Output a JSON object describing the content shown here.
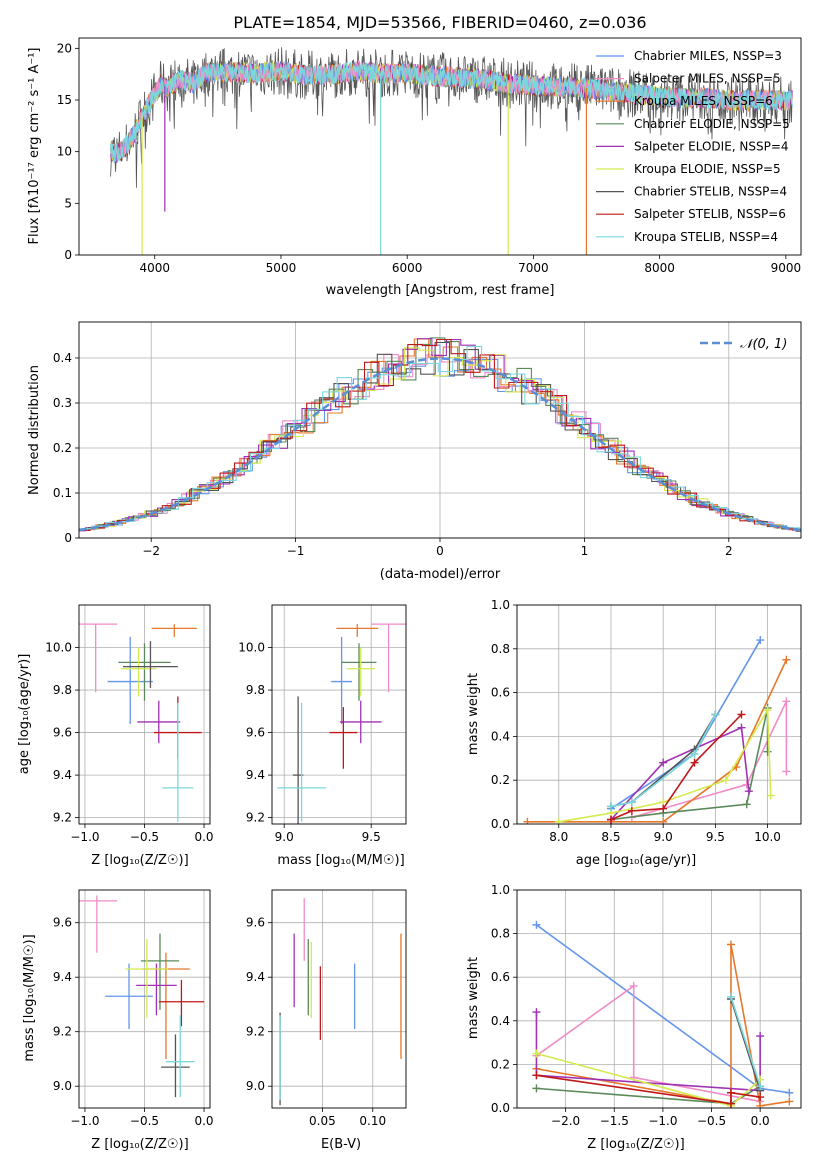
{
  "colors": [
    "#6495ed",
    "#f08cc8",
    "#e5782a",
    "#5a8a5a",
    "#a030b4",
    "#d4ea4e",
    "#555555",
    "#c01818",
    "#7ad8dc"
  ],
  "chart_data": [
    {
      "type": "line",
      "title": "PLATE=1854, MJD=53566, FIBERID=0460, z=0.036",
      "xlabel": "wavelength [Angstrom, rest frame]",
      "ylabel": "Flux [fλ10⁻¹⁷ erg cm⁻² s⁻¹ A⁻¹]",
      "xlim": [
        3400,
        9120
      ],
      "ylim": [
        0,
        21
      ],
      "xticks": [
        4000,
        5000,
        6000,
        7000,
        8000,
        9000
      ],
      "yticks": [
        0,
        5,
        10,
        15,
        20
      ],
      "grid": false,
      "legend_position": "right",
      "series": [
        {
          "name": "Chabrier MILES, N_SSP=3"
        },
        {
          "name": "Salpeter MILES, N_SSP=5"
        },
        {
          "name": "Kroupa MILES, N_SSP=6"
        },
        {
          "name": "Chabrier ELODIE, N_SSP=5"
        },
        {
          "name": "Salpeter ELODIE, N_SSP=4"
        },
        {
          "name": "Kroupa ELODIE, N_SSP=5"
        },
        {
          "name": "Chabrier STELIB, N_SSP=4"
        },
        {
          "name": "Salpeter STELIB, N_SSP=6"
        },
        {
          "name": "Kroupa STELIB, N_SSP=4"
        }
      ],
      "spectrum_envelope": {
        "x": [
          3650,
          3700,
          3750,
          3800,
          3850,
          3900,
          3950,
          4000,
          4050,
          4100,
          4200,
          4300,
          4400,
          4500,
          4600,
          4800,
          5000,
          5200,
          5400,
          5600,
          5800,
          6000,
          6200,
          6400,
          6600,
          6800,
          7000,
          7200,
          7400,
          7600,
          7800,
          8000,
          8200,
          8400,
          8600,
          8800,
          9000,
          9050
        ],
        "y": [
          10.0,
          9.8,
          10.2,
          11.0,
          12.0,
          13.5,
          14.5,
          15.5,
          16.5,
          16.2,
          17.0,
          16.6,
          17.6,
          17.8,
          17.7,
          17.6,
          17.8,
          17.4,
          17.5,
          17.8,
          17.6,
          17.6,
          17.3,
          17.2,
          17.0,
          16.6,
          16.4,
          16.3,
          16.2,
          15.9,
          15.6,
          15.3,
          15.2,
          15.2,
          14.9,
          15.0,
          15.0,
          15.0
        ]
      },
      "deep_drops": [
        {
          "x": 3900,
          "y": 0
        },
        {
          "x": 4080,
          "y": 4.2
        },
        {
          "x": 5790,
          "y": 0
        },
        {
          "x": 6800,
          "y": 0
        },
        {
          "x": 7420,
          "y": 0
        }
      ]
    },
    {
      "type": "histogram",
      "xlabel": "(data-model)/error",
      "ylabel": "Normed distribution",
      "xlim": [
        -2.5,
        2.5
      ],
      "ylim": [
        0,
        0.48
      ],
      "xticks": [
        -2,
        -1,
        0,
        1,
        2
      ],
      "yticks": [
        0.0,
        0.1,
        0.2,
        0.3,
        0.4
      ],
      "grid": true,
      "legend": "𝒩(0, 1)",
      "legend_position": "top-right"
    },
    {
      "type": "errorbar",
      "xlabel": "Z [log₁₀(Z/Z☉)]",
      "ylabel": "age  [log₁₀(age/yr)]",
      "xlim": [
        -1.05,
        0.05
      ],
      "ylim": [
        9.17,
        10.2
      ],
      "xticks": [
        -1.0,
        -0.5,
        0.0
      ],
      "yticks": [
        9.2,
        9.4,
        9.6,
        9.8,
        10.0
      ],
      "grid": true,
      "points": [
        {
          "x": -0.62,
          "xerr": 0.19,
          "y": 9.84,
          "yerr": [
            0.2,
            0.21
          ]
        },
        {
          "x": -0.91,
          "xerr": 0.18,
          "y": 10.11,
          "yerr": [
            0.32,
            0
          ]
        },
        {
          "x": -0.25,
          "xerr": 0.19,
          "y": 10.09,
          "yerr": [
            0.04,
            0.02
          ]
        },
        {
          "x": -0.5,
          "xerr": 0.22,
          "y": 9.93,
          "yerr": [
            0.18,
            0.09
          ]
        },
        {
          "x": -0.38,
          "xerr": 0.18,
          "y": 9.65,
          "yerr": [
            0.1,
            0.1
          ]
        },
        {
          "x": -0.55,
          "xerr": 0.15,
          "y": 9.9,
          "yerr": [
            0.13,
            0.1
          ]
        },
        {
          "x": -0.45,
          "xerr": 0.23,
          "y": 9.91,
          "yerr": [
            0.1,
            0.12
          ]
        },
        {
          "x": -0.22,
          "xerr": 0.2,
          "y": 9.6,
          "yerr": [
            0.12,
            0.17
          ]
        },
        {
          "x": -0.22,
          "xerr": 0.13,
          "y": 9.34,
          "yerr": [
            0.16,
            0.4
          ]
        }
      ]
    },
    {
      "type": "errorbar",
      "xlabel": "mass [log₁₀(M/M☉)]",
      "xlim": [
        8.93,
        9.7
      ],
      "ylim": [
        9.17,
        10.2
      ],
      "xticks": [
        9.0,
        9.5
      ],
      "yticks": [
        9.2,
        9.4,
        9.6,
        9.8,
        10.0
      ],
      "grid": true,
      "points": [
        {
          "x": 9.33,
          "xerr": 0.06,
          "y": 9.84,
          "yerr": [
            0.2,
            0.21
          ]
        },
        {
          "x": 9.6,
          "xerr": 0.1,
          "y": 10.11,
          "yerr": [
            0.32,
            0
          ]
        },
        {
          "x": 9.42,
          "xerr": 0.12,
          "y": 10.09,
          "yerr": [
            0.04,
            0.02
          ]
        },
        {
          "x": 9.43,
          "xerr": 0.1,
          "y": 9.93,
          "yerr": [
            0.18,
            0.09
          ]
        },
        {
          "x": 9.44,
          "xerr": 0.12,
          "y": 9.65,
          "yerr": [
            0.1,
            0.1
          ]
        },
        {
          "x": 9.44,
          "xerr": 0.08,
          "y": 9.9,
          "yerr": [
            0.13,
            0.1
          ]
        },
        {
          "x": 9.08,
          "xerr": 0.03,
          "y": 9.4,
          "yerr": [
            0.4,
            0.37
          ]
        },
        {
          "x": 9.34,
          "xerr": 0.08,
          "y": 9.6,
          "yerr": [
            0.17,
            0.12
          ]
        },
        {
          "x": 9.1,
          "xerr": 0.14,
          "y": 9.34,
          "yerr": [
            0.16,
            0.4
          ]
        }
      ]
    },
    {
      "type": "line",
      "xlabel": "age  [log₁₀(age/yr)]",
      "ylabel": "mass weight",
      "xlim": [
        7.6,
        10.32
      ],
      "ylim": [
        0.0,
        1.0
      ],
      "xticks": [
        8.0,
        8.5,
        9.0,
        9.5,
        10.0
      ],
      "yticks": [
        0.0,
        0.2,
        0.4,
        0.6,
        0.8,
        1.0
      ],
      "grid": true,
      "series": [
        {
          "x": [
            8.5,
            9.3,
            9.93
          ],
          "y": [
            0.07,
            0.32,
            0.84
          ]
        },
        {
          "x": [
            8.7,
            9.8,
            10.18,
            10.18
          ],
          "y": [
            0.03,
            0.18,
            0.56,
            0.24
          ]
        },
        {
          "x": [
            7.7,
            9.0,
            9.7,
            10.18
          ],
          "y": [
            0.01,
            0.01,
            0.26,
            0.75
          ]
        },
        {
          "x": [
            8.5,
            9.0,
            9.8,
            10.0,
            10.0
          ],
          "y": [
            0.02,
            0.05,
            0.09,
            0.53,
            0.33
          ]
        },
        {
          "x": [
            8.5,
            9.0,
            9.75,
            9.82
          ],
          "y": [
            0.02,
            0.28,
            0.44,
            0.15
          ]
        },
        {
          "x": [
            8.0,
            8.5,
            9.0,
            9.6,
            10.0,
            10.03
          ],
          "y": [
            0.01,
            0.05,
            0.1,
            0.2,
            0.52,
            0.13
          ]
        },
        {
          "x": [
            8.5,
            8.7,
            9.3,
            9.5
          ],
          "y": [
            0.08,
            0.1,
            0.34,
            0.5
          ]
        },
        {
          "x": [
            8.5,
            8.7,
            9.0,
            9.3,
            9.75
          ],
          "y": [
            0.02,
            0.06,
            0.07,
            0.28,
            0.5
          ]
        },
        {
          "x": [
            8.5,
            8.7,
            9.3,
            9.5
          ],
          "y": [
            0.08,
            0.1,
            0.32,
            0.5
          ]
        }
      ]
    },
    {
      "type": "errorbar",
      "xlabel": "Z [log₁₀(Z/Z☉)]",
      "ylabel": "mass [log₁₀(M/M☉)]",
      "xlim": [
        -1.05,
        0.05
      ],
      "ylim": [
        8.92,
        9.72
      ],
      "xticks": [
        -1.0,
        -0.5,
        0.0
      ],
      "yticks": [
        9.0,
        9.2,
        9.4,
        9.6
      ],
      "grid": true,
      "points": [
        {
          "x": -0.63,
          "xerr": 0.2,
          "y": 9.33,
          "yerr": [
            0.12,
            0.12
          ]
        },
        {
          "x": -0.9,
          "xerr": 0.17,
          "y": 9.68,
          "yerr": [
            0.19,
            0.02
          ]
        },
        {
          "x": -0.32,
          "xerr": 0.2,
          "y": 9.43,
          "yerr": [
            0.33,
            0.06
          ]
        },
        {
          "x": -0.37,
          "xerr": 0.16,
          "y": 9.46,
          "yerr": [
            0.18,
            0.1
          ]
        },
        {
          "x": -0.4,
          "xerr": 0.17,
          "y": 9.37,
          "yerr": [
            0.11,
            0.08
          ]
        },
        {
          "x": -0.48,
          "xerr": 0.18,
          "y": 9.43,
          "yerr": [
            0.18,
            0.11
          ]
        },
        {
          "x": -0.24,
          "xerr": 0.12,
          "y": 9.07,
          "yerr": [
            0.11,
            0.12
          ]
        },
        {
          "x": -0.19,
          "xerr": 0.19,
          "y": 9.31,
          "yerr": [
            0.09,
            0.08
          ]
        },
        {
          "x": -0.2,
          "xerr": 0.12,
          "y": 9.09,
          "yerr": [
            0.13,
            0.17
          ]
        }
      ]
    },
    {
      "type": "errorbar",
      "xlabel": "E(B-V)",
      "xlim": [
        0.0,
        0.133
      ],
      "ylim": [
        8.92,
        9.72
      ],
      "xticks": [
        0.05,
        0.1
      ],
      "yticks": [
        9.0,
        9.2,
        9.4,
        9.6
      ],
      "grid": true,
      "points": [
        {
          "x": 0.082,
          "y": 9.33,
          "yerr": [
            0.12,
            0.12
          ]
        },
        {
          "x": 0.032,
          "y": 9.6,
          "yerr": [
            0.14,
            0.09
          ]
        },
        {
          "x": 0.128,
          "y": 9.33,
          "yerr": [
            0.23,
            0.23
          ]
        },
        {
          "x": 0.036,
          "y": 9.44,
          "yerr": [
            0.18,
            0.1
          ]
        },
        {
          "x": 0.022,
          "y": 9.46,
          "yerr": [
            0.17,
            0.1
          ]
        },
        {
          "x": 0.039,
          "y": 9.43,
          "yerr": [
            0.18,
            0.1
          ]
        },
        {
          "x": 0.008,
          "y": 9.1,
          "yerr": [
            0.17,
            0.17
          ]
        },
        {
          "x": 0.048,
          "y": 9.31,
          "yerr": [
            0.14,
            0.13
          ]
        },
        {
          "x": 0.008,
          "y": 9.09,
          "yerr": [
            0.14,
            0.17
          ]
        }
      ]
    },
    {
      "type": "line",
      "xlabel": "Z [log₁₀(Z/Z☉)]",
      "ylabel": "mass weight",
      "xlim": [
        -2.5,
        0.42
      ],
      "ylim": [
        0.0,
        1.0
      ],
      "xticks": [
        -2.0,
        -1.5,
        -1.0,
        -0.5,
        0.0
      ],
      "yticks": [
        0.0,
        0.2,
        0.4,
        0.6,
        0.8,
        1.0
      ],
      "grid": true,
      "series": [
        {
          "x": [
            -2.3,
            0.0,
            0.3
          ],
          "y": [
            0.84,
            0.09,
            0.07
          ]
        },
        {
          "x": [
            -2.3,
            -1.3,
            -1.3,
            0.0
          ],
          "y": [
            0.24,
            0.56,
            0.14,
            0.03
          ]
        },
        {
          "x": [
            -2.3,
            -0.3,
            -0.3,
            0.0,
            0.3
          ],
          "y": [
            0.18,
            0.02,
            0.75,
            0.01,
            0.03
          ]
        },
        {
          "x": [
            -2.3,
            -0.3,
            0.0
          ],
          "y": [
            0.09,
            0.02,
            0.1
          ]
        },
        {
          "x": [
            -2.3,
            -2.3,
            0.0,
            0.0
          ],
          "y": [
            0.44,
            0.15,
            0.08,
            0.33
          ]
        },
        {
          "x": [
            -2.3,
            -0.3,
            0.0
          ],
          "y": [
            0.25,
            0.01,
            0.13
          ]
        },
        {
          "x": [
            -0.3,
            0.0
          ],
          "y": [
            0.5,
            0.08
          ]
        },
        {
          "x": [
            -2.3,
            -0.3,
            -0.3,
            0.0
          ],
          "y": [
            0.15,
            0.02,
            0.07,
            0.05
          ]
        },
        {
          "x": [
            -0.3,
            0.0
          ],
          "y": [
            0.51,
            0.1
          ]
        }
      ]
    }
  ]
}
